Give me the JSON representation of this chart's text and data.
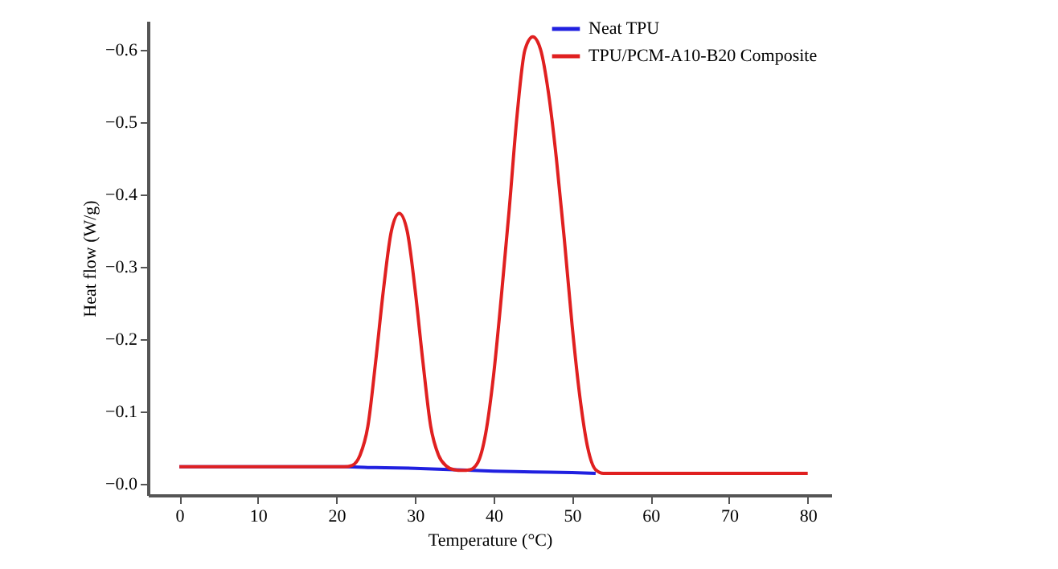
{
  "chart_data": {
    "type": "line",
    "xlabel": "Temperature (°C)",
    "ylabel": "Heat flow (W/g)",
    "xlim": [
      -4,
      83
    ],
    "xticks": [
      0,
      10,
      20,
      30,
      40,
      50,
      60,
      70,
      80
    ],
    "ylim": [
      0.015,
      -0.64
    ],
    "yticks": [
      {
        "value": 0,
        "label": "−0.0"
      },
      {
        "value": -0.1,
        "label": "−0.1"
      },
      {
        "value": -0.2,
        "label": "−0.2"
      },
      {
        "value": -0.3,
        "label": "−0.3"
      },
      {
        "value": -0.4,
        "label": "−0.4"
      },
      {
        "value": -0.5,
        "label": "−0.5"
      },
      {
        "value": -0.6,
        "label": "−0.6"
      }
    ],
    "grid": false,
    "legend": "top right",
    "line_style": "solid",
    "marker": "none",
    "series": [
      {
        "name": "Neat TPU",
        "color": "#2020e0",
        "x": [
          0,
          21,
          25,
          30,
          35,
          40,
          45,
          50,
          53
        ],
        "values": [
          -0.024,
          -0.024,
          -0.023,
          -0.022,
          -0.02,
          -0.018,
          -0.017,
          -0.016,
          -0.015
        ]
      },
      {
        "name": "TPU/PCM-A10-B20 Composite",
        "color": "#e02020",
        "x": [
          0,
          21,
          22,
          23,
          24,
          25,
          26,
          27,
          28,
          29,
          30,
          31,
          32,
          33,
          34,
          35,
          36,
          37,
          38,
          39,
          40,
          41,
          42,
          43,
          44,
          45,
          46,
          47,
          48,
          49,
          50,
          51,
          52,
          53,
          54,
          60,
          70,
          80
        ],
        "values": [
          -0.024,
          -0.024,
          -0.026,
          -0.04,
          -0.08,
          -0.17,
          -0.27,
          -0.35,
          -0.374,
          -0.35,
          -0.27,
          -0.17,
          -0.08,
          -0.04,
          -0.025,
          -0.02,
          -0.019,
          -0.02,
          -0.03,
          -0.07,
          -0.15,
          -0.26,
          -0.38,
          -0.51,
          -0.6,
          -0.618,
          -0.6,
          -0.54,
          -0.45,
          -0.34,
          -0.22,
          -0.12,
          -0.05,
          -0.02,
          -0.015,
          -0.015,
          -0.015,
          -0.015
        ]
      }
    ]
  }
}
